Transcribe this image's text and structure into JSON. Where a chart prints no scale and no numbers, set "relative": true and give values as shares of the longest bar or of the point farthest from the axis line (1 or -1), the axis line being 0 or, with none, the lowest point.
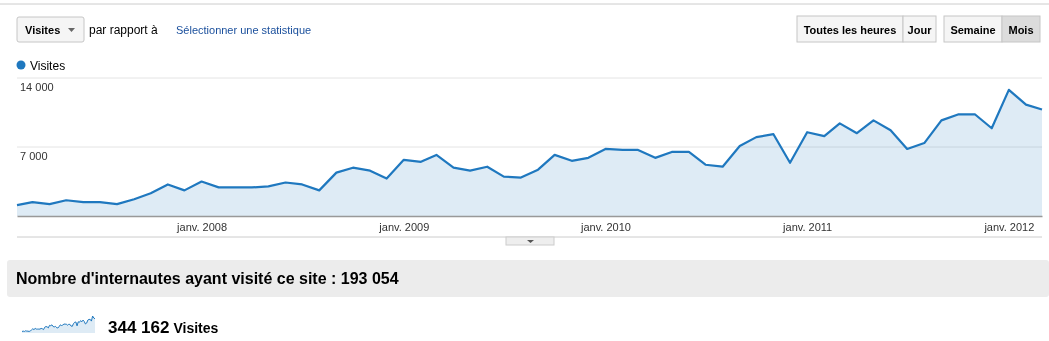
{
  "chart_data": [
    {
      "type": "area",
      "x": [
        "2007-02",
        "2007-03",
        "2007-04",
        "2007-05",
        "2007-06",
        "2007-07",
        "2007-08",
        "2007-09",
        "2007-10",
        "2007-11",
        "2007-12",
        "2008-01",
        "2008-02",
        "2008-03",
        "2008-04",
        "2008-05",
        "2008-06",
        "2008-07",
        "2008-08",
        "2008-09",
        "2008-10",
        "2008-11",
        "2008-12",
        "2009-01",
        "2009-02",
        "2009-03",
        "2009-04",
        "2009-05",
        "2009-06",
        "2009-07",
        "2009-08",
        "2009-09",
        "2009-10",
        "2009-11",
        "2009-12",
        "2010-01",
        "2010-02",
        "2010-03",
        "2010-04",
        "2010-05",
        "2010-06",
        "2010-07",
        "2010-08",
        "2010-09",
        "2010-10",
        "2010-11",
        "2010-12",
        "2011-01",
        "2011-02",
        "2011-03",
        "2011-04",
        "2011-05",
        "2011-06",
        "2011-07",
        "2011-08",
        "2011-09",
        "2011-10",
        "2011-11",
        "2011-12",
        "2012-01",
        "2012-02",
        "2012-03"
      ],
      "series": [
        {
          "name": "Visites",
          "color": "#1f78bf",
          "values": [
            1100,
            1400,
            1200,
            1600,
            1400,
            1400,
            1200,
            1700,
            2300,
            3200,
            2600,
            3500,
            2900,
            2900,
            2900,
            3000,
            3400,
            3200,
            2600,
            4400,
            4900,
            4600,
            3800,
            5700,
            5500,
            6200,
            4900,
            4600,
            5000,
            4000,
            3900,
            4700,
            6200,
            5600,
            5900,
            6800,
            6700,
            6700,
            5900,
            6500,
            6500,
            5200,
            5000,
            7100,
            8000,
            8300,
            5400,
            8500,
            8100,
            9400,
            8400,
            9700,
            8700,
            6800,
            7400,
            9700,
            10300,
            10300,
            8900,
            12800,
            11300,
            10800
          ]
        }
      ],
      "xlim": [
        "2007-02",
        "2012-03"
      ],
      "xticks": [
        {
          "value": "2008-01",
          "label": "janv. 2008"
        },
        {
          "value": "2009-01",
          "label": "janv. 2009"
        },
        {
          "value": "2010-01",
          "label": "janv. 2010"
        },
        {
          "value": "2011-01",
          "label": "janv. 2011"
        },
        {
          "value": "2012-01",
          "label": "janv. 2012"
        }
      ],
      "ylim": [
        0,
        14000
      ],
      "yticks": [
        {
          "value": 7000,
          "label": "7 000"
        },
        {
          "value": 14000,
          "label": "14 000"
        }
      ],
      "grid": "y",
      "legend": "top left",
      "annotations": [
        "Visites",
        "par rapport à",
        "Sélectionner une statistique",
        "Toutes les heures",
        "Jour",
        "Semaine",
        "Mois",
        "Nombre d'internautes ayant visité ce site : 193 054"
      ]
    },
    {
      "type": "area",
      "relative": true,
      "categories": [
        null,
        null,
        null,
        null,
        null,
        null,
        null,
        null,
        null,
        null,
        null,
        null,
        null,
        null,
        null,
        null,
        null,
        null,
        null,
        null,
        null,
        null,
        null,
        null,
        null,
        null,
        null,
        null,
        null,
        null,
        null,
        null,
        null,
        null,
        null,
        null,
        null,
        null,
        null,
        null,
        null,
        null,
        null,
        null,
        null,
        null,
        null,
        null,
        null,
        null,
        null,
        null,
        null,
        null,
        null,
        null,
        null,
        null,
        null,
        null,
        null,
        null
      ],
      "series": [
        {
          "color": "#1f78bf",
          "values": [
            0.09,
            0.11,
            0.09,
            0.13,
            0.11,
            0.11,
            0.09,
            0.13,
            0.18,
            0.25,
            0.2,
            0.27,
            0.23,
            0.23,
            0.23,
            0.23,
            0.27,
            0.25,
            0.2,
            0.34,
            0.38,
            0.36,
            0.3,
            0.45,
            0.43,
            0.48,
            0.38,
            0.36,
            0.39,
            0.31,
            0.3,
            0.37,
            0.48,
            0.44,
            0.46,
            0.53,
            0.52,
            0.52,
            0.46,
            0.51,
            0.51,
            0.41,
            0.39,
            0.55,
            0.63,
            0.65,
            0.42,
            0.66,
            0.63,
            0.73,
            0.66,
            0.76,
            0.68,
            0.53,
            0.58,
            0.76,
            0.8,
            0.8,
            0.7,
            1,
            0.88,
            0.84
          ]
        }
      ],
      "annotations": [
        "344 162",
        "Visites"
      ]
    }
  ]
}
